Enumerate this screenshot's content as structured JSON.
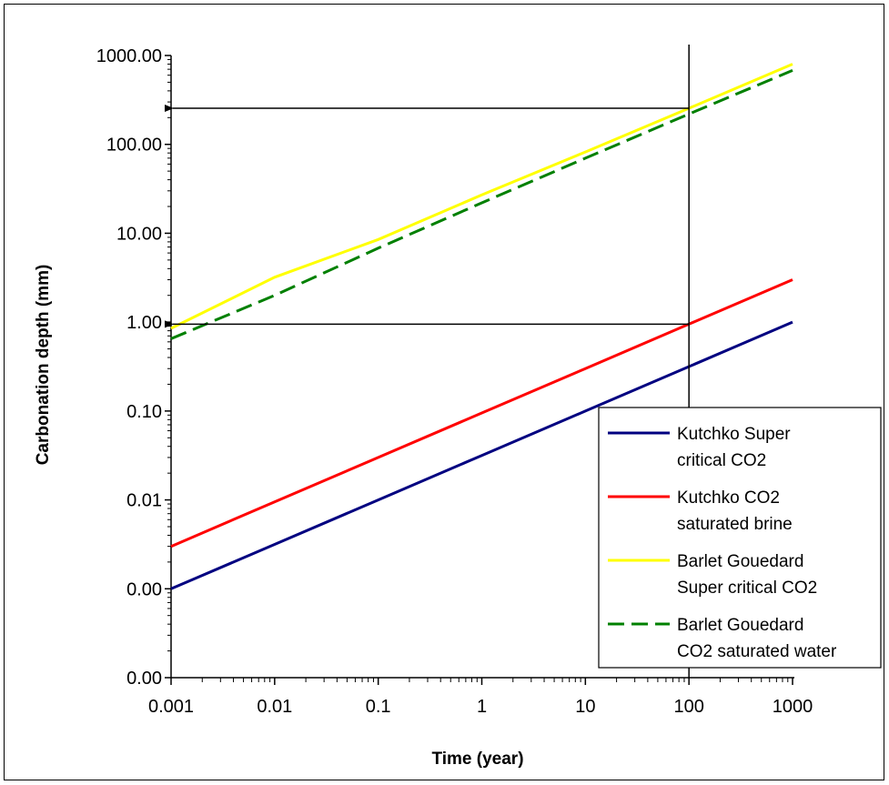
{
  "chart_data": {
    "type": "line",
    "title": "",
    "xlabel": "Time (year)",
    "ylabel": "Carbonation depth (mm)",
    "xscale": "log",
    "yscale": "log",
    "xlim": [
      0.001,
      1000
    ],
    "ylim": [
      0.0001,
      1000
    ],
    "x_tick_values": [
      0.001,
      0.01,
      0.1,
      1,
      10,
      100,
      1000
    ],
    "x_tick_labels": [
      "0.001",
      "0.01",
      "0.1",
      "1",
      "10",
      "100",
      "1000"
    ],
    "y_tick_values": [
      0.0001,
      0.001,
      0.01,
      0.1,
      1,
      10,
      100,
      1000
    ],
    "y_tick_labels": [
      "0.00",
      "0.00",
      "0.01",
      "0.10",
      "1.00",
      "10.00",
      "100.00",
      "1000.00"
    ],
    "grid": false,
    "legend_position": "bottom-right",
    "series": [
      {
        "name": "Kutchko Super critical CO2",
        "legend_lines": [
          "Kutchko Super",
          "critical CO2"
        ],
        "color": "#000080",
        "dash": "solid",
        "x": [
          0.001,
          0.01,
          0.1,
          1,
          10,
          100,
          1000
        ],
        "y": [
          0.001,
          0.00316,
          0.01,
          0.0316,
          0.1,
          0.316,
          1.0
        ]
      },
      {
        "name": "Kutchko CO2 saturated brine",
        "legend_lines": [
          "Kutchko CO2",
          "saturated brine"
        ],
        "color": "#ff0000",
        "dash": "solid",
        "x": [
          0.001,
          0.01,
          0.1,
          1,
          10,
          100,
          1000
        ],
        "y": [
          0.003,
          0.0095,
          0.03,
          0.095,
          0.3,
          0.95,
          3.0
        ]
      },
      {
        "name": "Barlet Gouedard Super critical CO2",
        "legend_lines": [
          "Barlet Gouedard",
          "Super critical CO2"
        ],
        "color": "#ffff00",
        "dash": "solid",
        "x": [
          0.001,
          0.01,
          0.1,
          1,
          10,
          100,
          1000
        ],
        "y": [
          0.85,
          3.2,
          8.5,
          27,
          82,
          255,
          800
        ]
      },
      {
        "name": "Barlet Gouedard CO2 saturated water",
        "legend_lines": [
          "Barlet Gouedard",
          "CO2 saturated water"
        ],
        "color": "#008000",
        "dash": "dashed",
        "x": [
          0.001,
          0.01,
          0.1,
          1,
          10,
          100,
          1000
        ],
        "y": [
          0.65,
          2.0,
          6.8,
          22,
          70,
          220,
          680
        ]
      }
    ],
    "annotations": [
      {
        "kind": "vertical-line",
        "x": 100,
        "y_range": [
          0.1,
          1000
        ]
      },
      {
        "kind": "arrow",
        "from": [
          100,
          255
        ],
        "to": [
          0.001,
          255
        ]
      },
      {
        "kind": "arrow",
        "from": [
          100,
          0.95
        ],
        "to": [
          0.001,
          0.95
        ]
      }
    ]
  }
}
